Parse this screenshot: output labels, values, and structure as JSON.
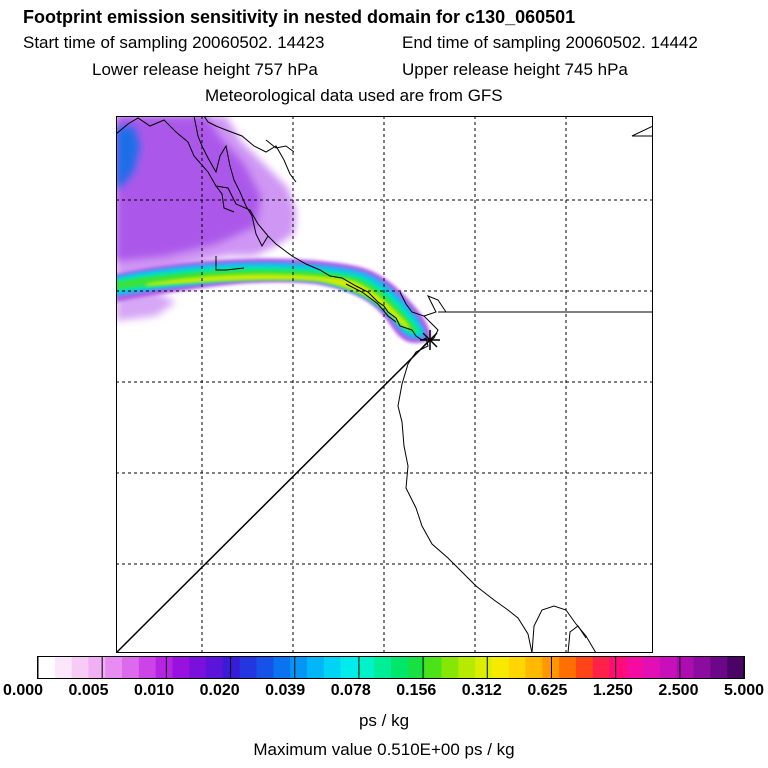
{
  "header": {
    "title": "Footprint emission sensitivity in nested domain for c130_060501",
    "start_time": "Start time of sampling 20060502. 14423",
    "end_time": "End time of sampling 20060502. 14442",
    "lower_release": "Lower release height  757 hPa",
    "upper_release": "Upper release height  745 hPa",
    "met_data": "Meteorological data used are from GFS"
  },
  "colorbar": {
    "tick_labels": [
      "0.000",
      "0.005",
      "0.010",
      "0.020",
      "0.039",
      "0.078",
      "0.156",
      "0.312",
      "0.625",
      "1.250",
      "2.500",
      "5.000"
    ],
    "colors": [
      "#ffffff",
      "#fbe6fb",
      "#f6ccf6",
      "#f0b0f3",
      "#e78cf0",
      "#dc6aec",
      "#cc44e8",
      "#b524e4",
      "#9812df",
      "#7a10dc",
      "#5a14da",
      "#3a1cd8",
      "#2436e0",
      "#1652e8",
      "#0a74f0",
      "#0496f4",
      "#00b6f6",
      "#00d4f4",
      "#00ecec",
      "#00f2c8",
      "#00ee98",
      "#00e66a",
      "#16e042",
      "#4ce21a",
      "#86e606",
      "#b6ea00",
      "#dcee00",
      "#f6ea00",
      "#ffd600",
      "#ffba00",
      "#ff9800",
      "#ff7000",
      "#ff4418",
      "#ff2248",
      "#ff0c78",
      "#f40ca0",
      "#e010b4",
      "#c810ba",
      "#ac0cb0",
      "#8c0ca0",
      "#6a0888",
      "#4a0466"
    ],
    "units": "ps / kg",
    "max_value": "Maximum value  0.510E+00 ps / kg"
  },
  "map": {
    "grid": "dashed",
    "release_marker": "star",
    "plume_colors": {
      "background_low": "#c98cf2",
      "background_mid": "#a24ee8",
      "background_high": "#1a6ee8",
      "plume_outer": "#00e6c8",
      "plume_mid": "#2ae24a",
      "plume_core": "#d6ee00"
    }
  }
}
